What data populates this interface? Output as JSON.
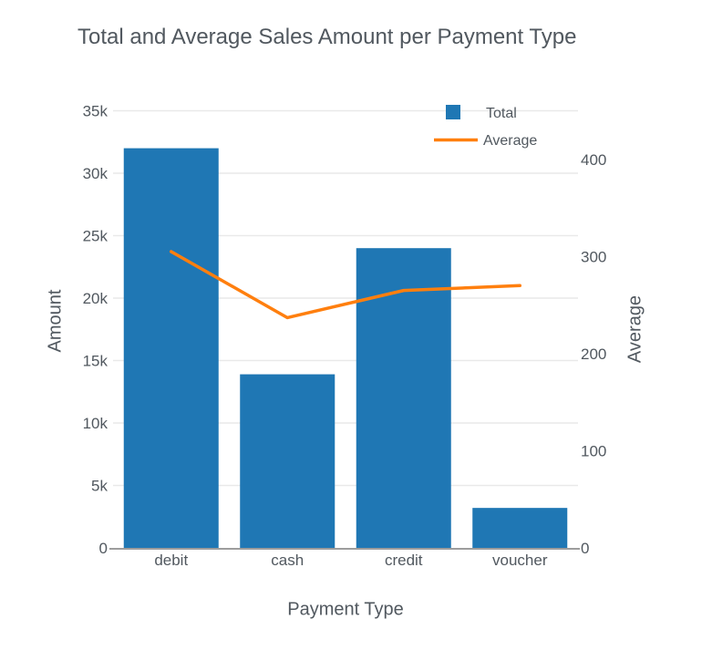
{
  "chart_data": {
    "type": "bar",
    "subtype": "combo bar+line with dual y-axes",
    "title": "Total and Average Sales Amount per Payment Type",
    "xlabel": "Payment Type",
    "ylabel": "Amount",
    "ylabel_right": "Average",
    "categories": [
      "debit",
      "cash",
      "credit",
      "voucher"
    ],
    "series": [
      {
        "name": "Total",
        "type": "bar",
        "yaxis": "left",
        "color": "#1f77b4",
        "values": [
          32000,
          13900,
          24000,
          3200
        ]
      },
      {
        "name": "Average",
        "type": "line",
        "yaxis": "right",
        "color": "#ff7f0e",
        "values": [
          305,
          237,
          265,
          270
        ]
      }
    ],
    "yaxis_left": {
      "range": [
        0,
        35000
      ],
      "tick_values": [
        0,
        5000,
        10000,
        15000,
        20000,
        25000,
        30000,
        35000
      ],
      "tick_labels": [
        "0",
        "5k",
        "10k",
        "15k",
        "20k",
        "25k",
        "30k",
        "35k"
      ]
    },
    "yaxis_right": {
      "range": [
        0,
        450
      ],
      "tick_values": [
        0,
        100,
        200,
        300,
        400
      ],
      "tick_labels": [
        "0",
        "100",
        "200",
        "300",
        "400"
      ]
    },
    "grid": true,
    "legend_position": "top-right-inside",
    "legend": [
      {
        "label": "Total",
        "swatch": "square",
        "color": "#1f77b4"
      },
      {
        "label": "Average",
        "swatch": "line",
        "color": "#ff7f0e"
      }
    ]
  },
  "style": {
    "background": "#ffffff",
    "text_color": "#51585f",
    "grid_color": "#e9e9e9",
    "axis_line_color": "#7d7d7d"
  }
}
